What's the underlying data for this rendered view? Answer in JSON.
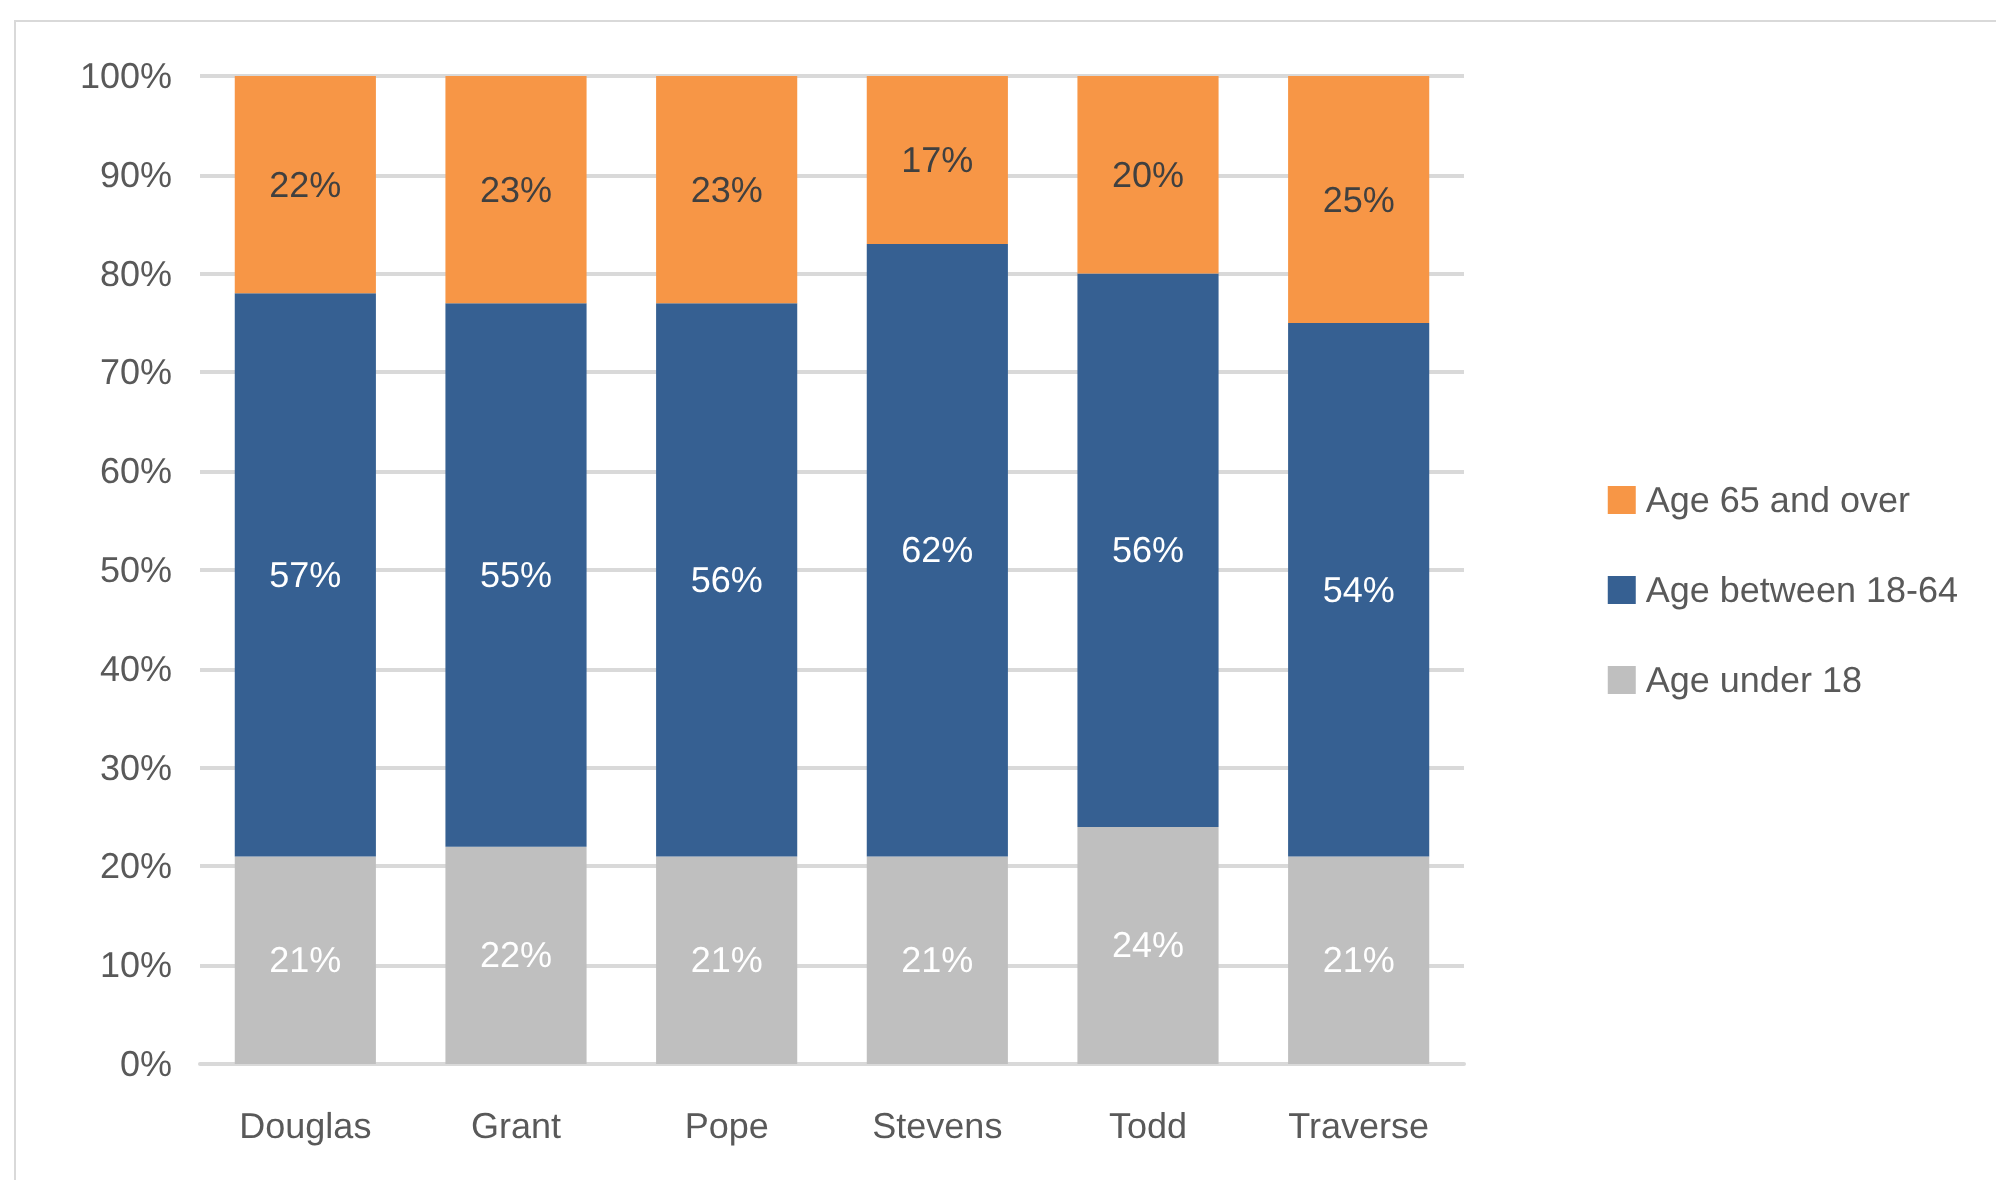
{
  "chart_data": {
    "type": "bar",
    "stacked": true,
    "categories": [
      "Douglas",
      "Grant",
      "Pope",
      "Stevens",
      "Todd",
      "Traverse"
    ],
    "series": [
      {
        "name": "Age under 18",
        "color": "#bfbfbf",
        "values": [
          21,
          22,
          21,
          21,
          24,
          21
        ],
        "value_labels": [
          "21%",
          "22%",
          "21%",
          "21%",
          "24%",
          "21%"
        ]
      },
      {
        "name": "Age between 18-64",
        "color": "#366092",
        "values": [
          57,
          55,
          56,
          62,
          56,
          54
        ],
        "value_labels": [
          "57%",
          "55%",
          "56%",
          "62%",
          "56%",
          "54%"
        ]
      },
      {
        "name": "Age 65 and over",
        "color": "#f79646",
        "values": [
          22,
          23,
          23,
          17,
          20,
          25
        ],
        "value_labels": [
          "22%",
          "23%",
          "23%",
          "17%",
          "20%",
          "25%"
        ]
      }
    ],
    "ylim": [
      0,
      100
    ],
    "yticks": [
      {
        "value": 0,
        "label": "0%"
      },
      {
        "value": 10,
        "label": "10%"
      },
      {
        "value": 20,
        "label": "20%"
      },
      {
        "value": 30,
        "label": "30%"
      },
      {
        "value": 40,
        "label": "40%"
      },
      {
        "value": 50,
        "label": "50%"
      },
      {
        "value": 60,
        "label": "60%"
      },
      {
        "value": 70,
        "label": "70%"
      },
      {
        "value": 80,
        "label": "80%"
      },
      {
        "value": 90,
        "label": "90%"
      },
      {
        "value": 100,
        "label": "100%"
      }
    ],
    "grid": "y",
    "legend": "right"
  }
}
